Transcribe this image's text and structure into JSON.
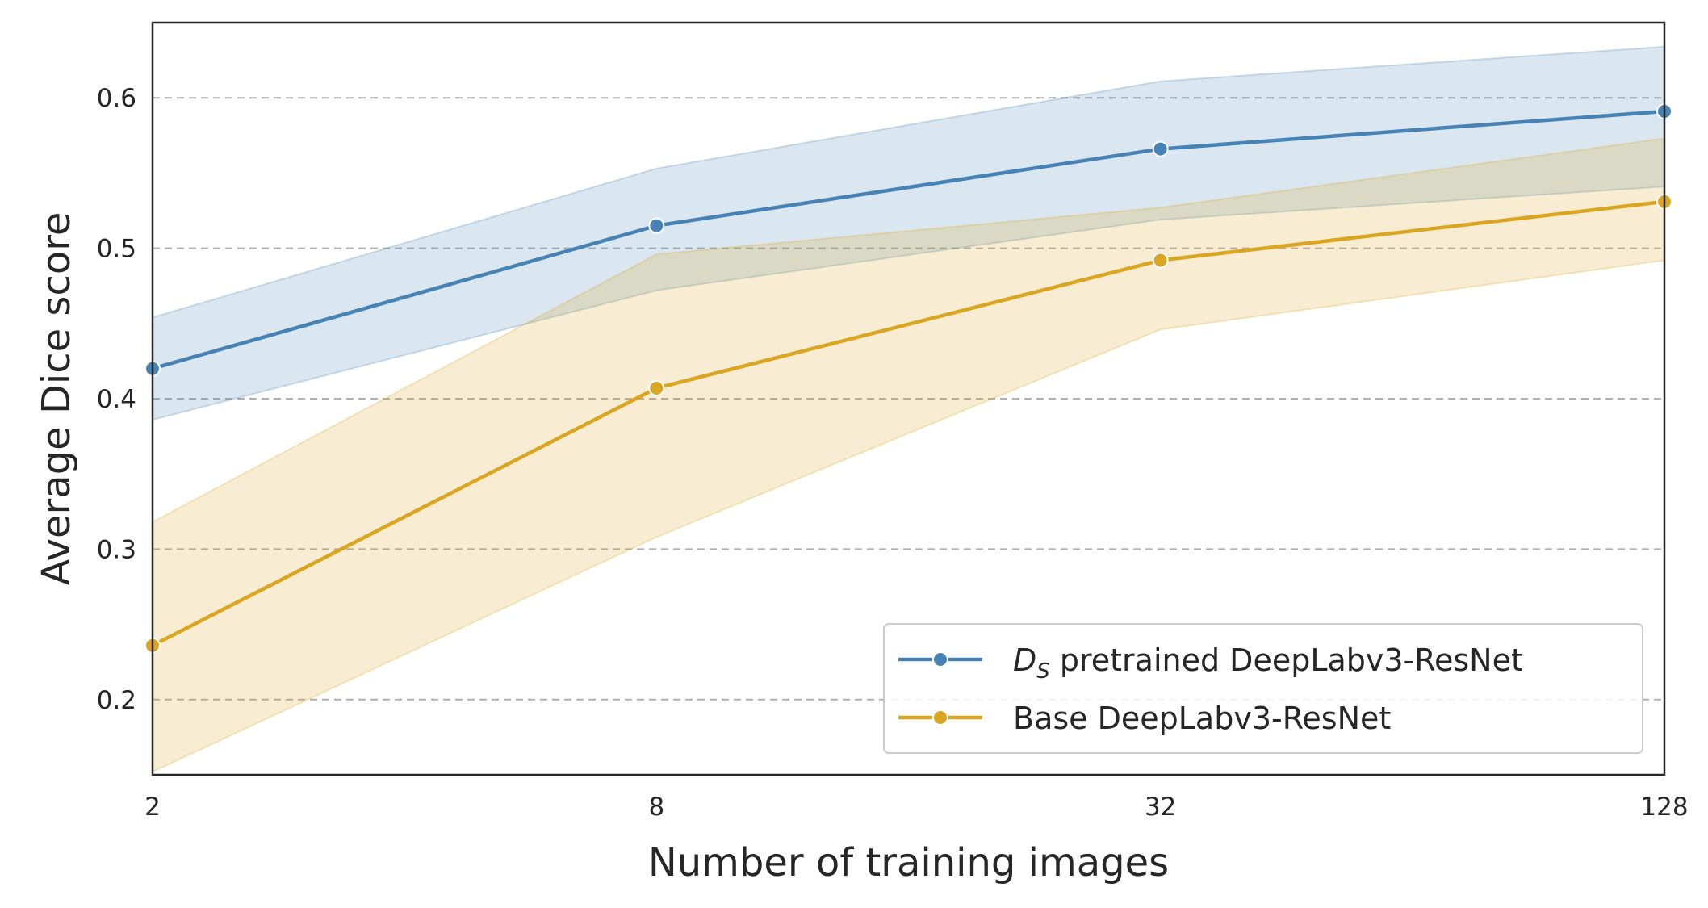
{
  "chart_data": {
    "type": "line",
    "title": "",
    "xlabel": "Number of training images",
    "ylabel": "Average Dice score",
    "x": [
      2,
      8,
      32,
      128
    ],
    "x_tick_labels": [
      "2",
      "8",
      "32",
      "128"
    ],
    "x_scale": "log2",
    "xlim": [
      2,
      128
    ],
    "ylim": [
      0.15,
      0.65
    ],
    "y_ticks": [
      0.2,
      0.3,
      0.4,
      0.5,
      0.6
    ],
    "y_tick_labels": [
      "0.2",
      "0.3",
      "0.4",
      "0.5",
      "0.6"
    ],
    "grid": "y-dashed",
    "legend_position": "lower-right",
    "series": [
      {
        "name_main": "D",
        "name_sub": "S",
        "name_rest": " pretrained DeepLabv3-ResNet",
        "color": "#4682b4",
        "values": [
          0.42,
          0.515,
          0.566,
          0.591
        ],
        "lower": [
          0.386,
          0.472,
          0.519,
          0.541
        ],
        "upper": [
          0.454,
          0.553,
          0.611,
          0.634
        ]
      },
      {
        "name_main": "Base DeepLabv3-ResNet",
        "name_sub": "",
        "name_rest": "",
        "color": "#daa520",
        "values": [
          0.236,
          0.407,
          0.492,
          0.531
        ],
        "lower": [
          0.152,
          0.308,
          0.446,
          0.492
        ],
        "upper": [
          0.318,
          0.496,
          0.527,
          0.573
        ]
      }
    ]
  }
}
